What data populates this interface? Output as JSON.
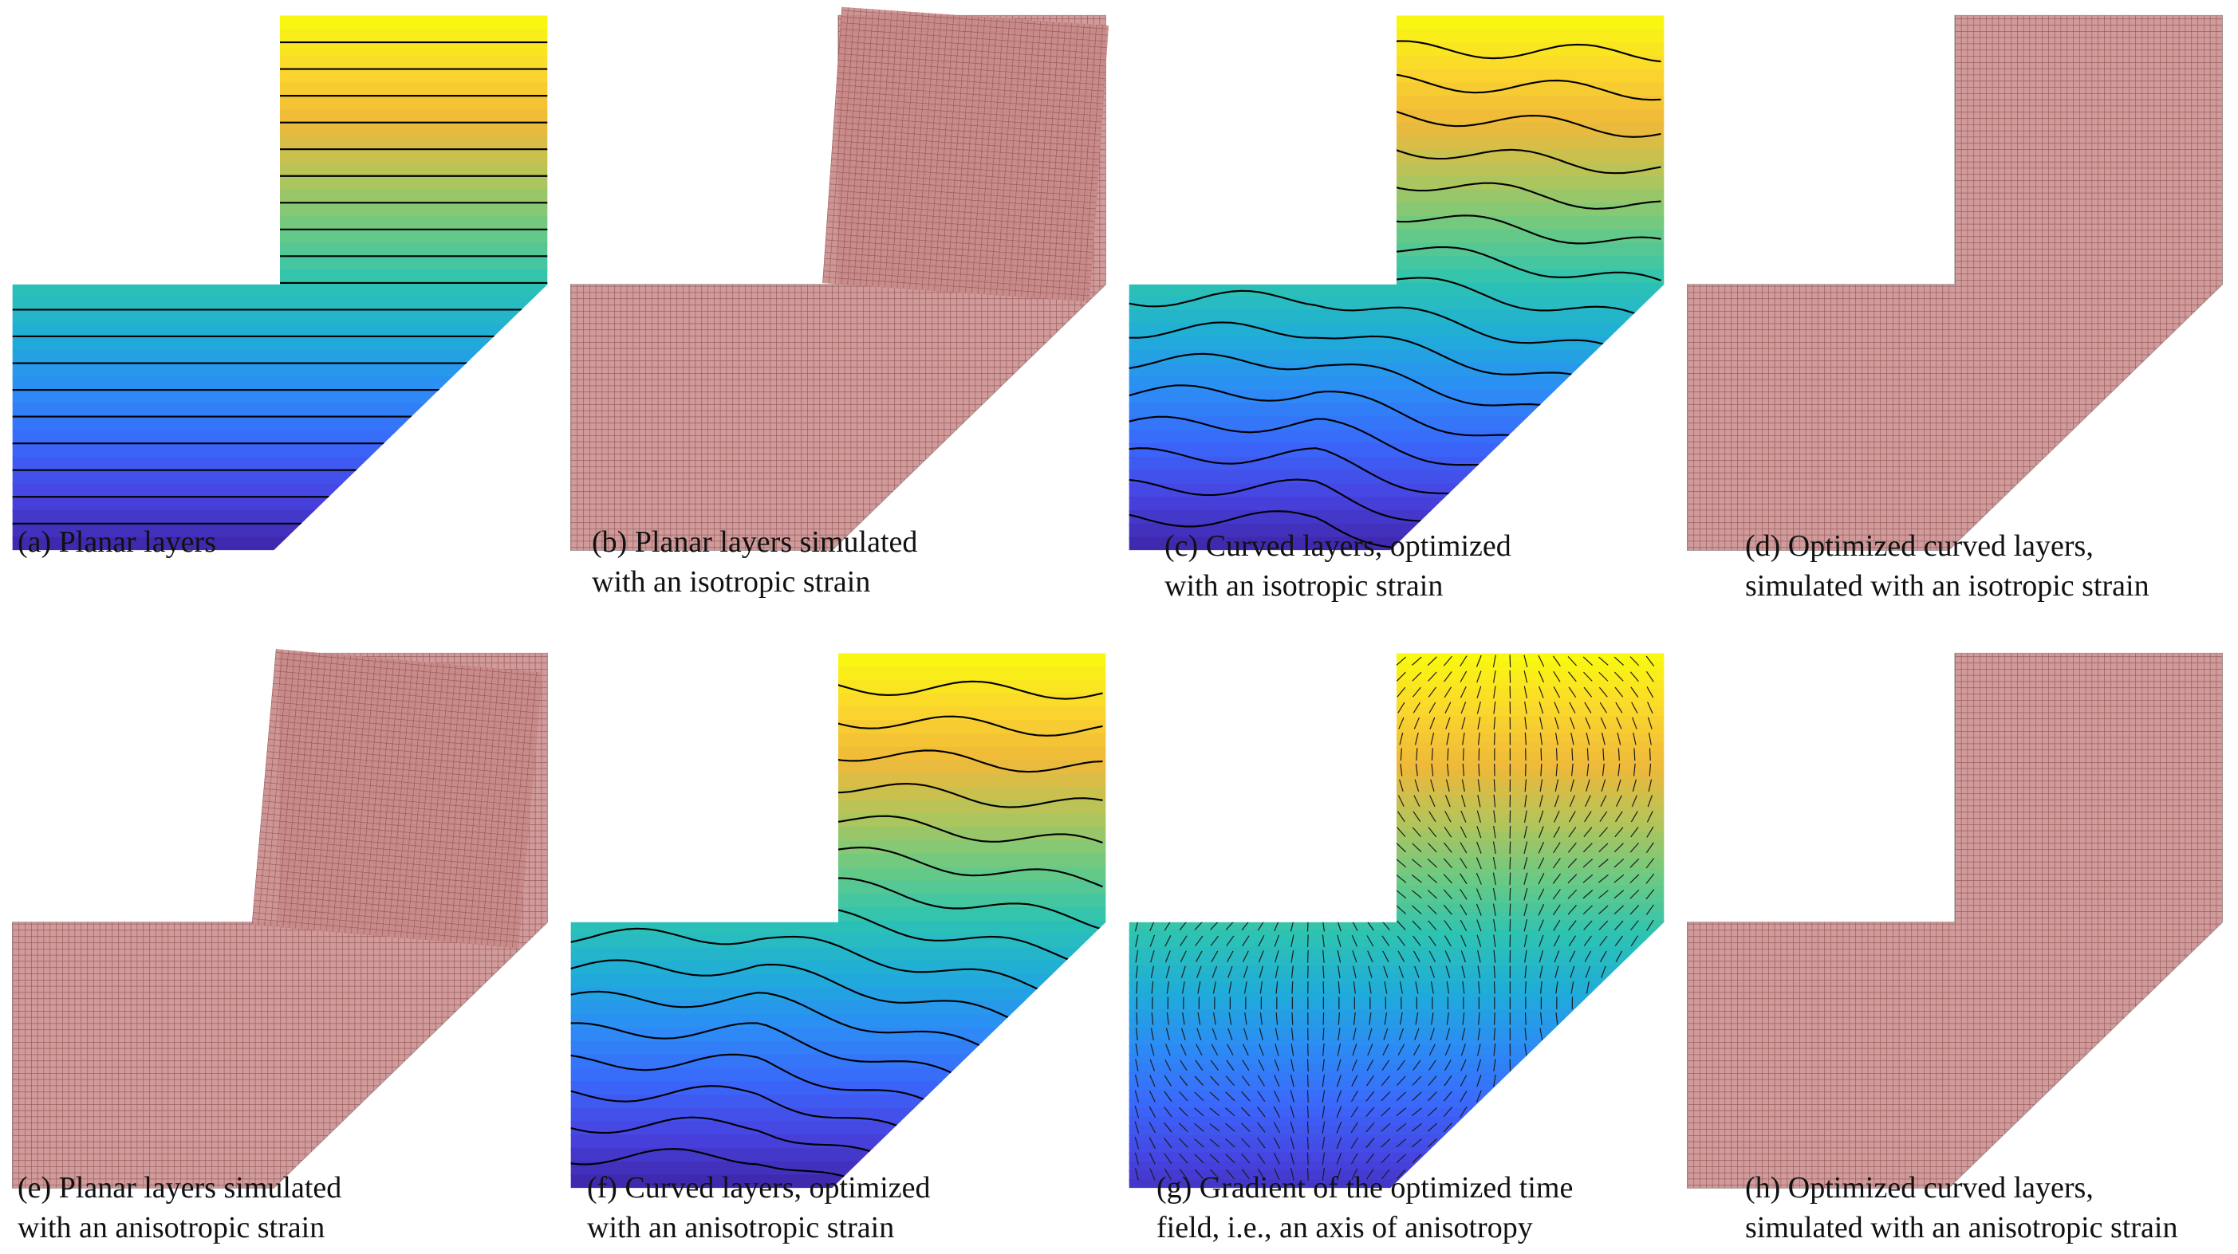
{
  "figure": {
    "panels": [
      {
        "id": "a",
        "caption": [
          "(a) Planar layers"
        ]
      },
      {
        "id": "b",
        "caption": [
          "(b) Planar layers simulated",
          "with an isotropic strain"
        ]
      },
      {
        "id": "c",
        "caption": [
          "(c) Curved layers, optimized",
          "with an isotropic strain"
        ]
      },
      {
        "id": "d",
        "caption": [
          "(d) Optimized curved layers,",
          "simulated with an isotropic strain"
        ]
      },
      {
        "id": "e",
        "caption": [
          "(e) Planar layers simulated",
          "with an anisotropic strain"
        ]
      },
      {
        "id": "f",
        "caption": [
          "(f) Curved layers, optimized",
          "with an anisotropic strain"
        ]
      },
      {
        "id": "g",
        "caption": [
          "(g) Gradient of the optimized time",
          "field, i.e., an axis of anisotropy"
        ]
      },
      {
        "id": "h",
        "caption": [
          "(h) Optimized curved layers,",
          "simulated with an anisotropic strain"
        ]
      }
    ],
    "colors": {
      "mesh_fill": "#c98a8a",
      "mesh_line": "#7a3b3b",
      "ref_mesh": "#9a9a9a",
      "layer_line": "#000000",
      "parula": [
        "#3e26a8",
        "#4743e0",
        "#3a68fb",
        "#2c8cf4",
        "#1fadd9",
        "#2dc3b2",
        "#6bca83",
        "#b4c45a",
        "#efb83a",
        "#fbd72d",
        "#f9fb0e"
      ]
    }
  }
}
